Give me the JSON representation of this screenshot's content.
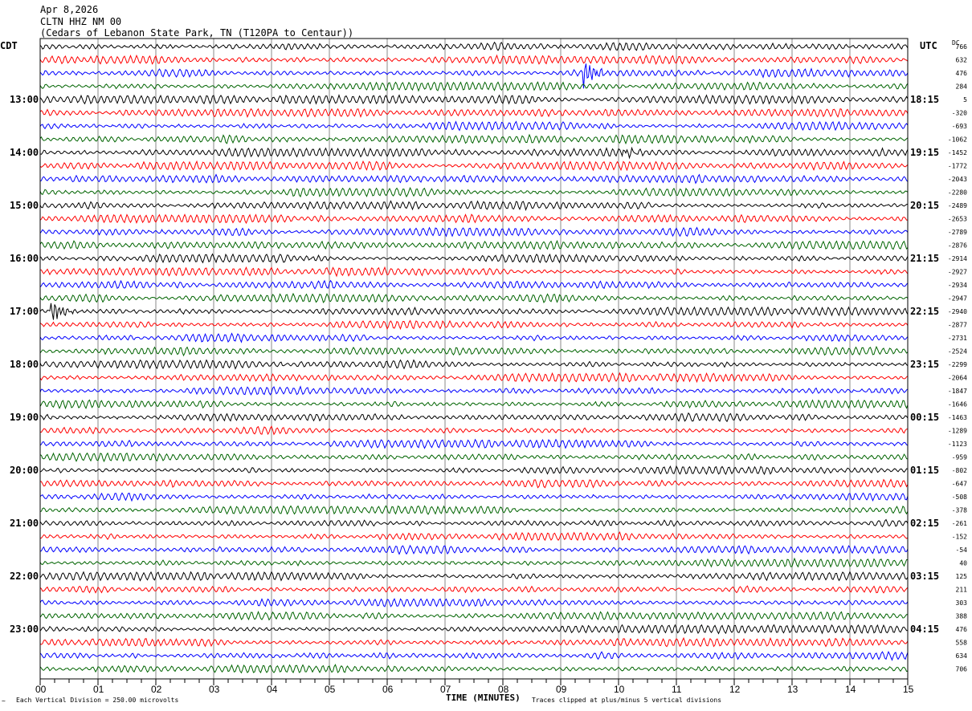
{
  "header": {
    "date": "Apr 8,2026",
    "station": "CLTN HHZ NM 00",
    "location": "(Cedars of Lebanon State Park, TN (T120PA to Centaur))"
  },
  "left_zone_label": "CDT",
  "right_zone_label": "UTC",
  "dc_label": "DC",
  "footer": {
    "scale_note": "Each Vertical Division =  250.00 microvolts",
    "xlabel": "TIME (MINUTES)",
    "clip_note": "Traces clipped at plus/minus 5 vertical divisions"
  },
  "chart_data": {
    "type": "line",
    "title": "CLTN HHZ NM 00 helicorder",
    "xlabel": "TIME (MINUTES)",
    "xlim": [
      0,
      15
    ],
    "x_ticks": [
      "00",
      "01",
      "02",
      "03",
      "04",
      "05",
      "06",
      "07",
      "08",
      "09",
      "10",
      "11",
      "12",
      "13",
      "14",
      "15"
    ],
    "grid": true,
    "trace_minutes": 15,
    "trace_colors": [
      "#000000",
      "#ff0000",
      "#0000ff",
      "#006400"
    ],
    "left_hour_labels": [
      "13:00",
      "14:00",
      "15:00",
      "16:00",
      "17:00",
      "18:00",
      "19:00",
      "20:00",
      "21:00",
      "22:00",
      "23:00"
    ],
    "right_hour_labels": [
      "18:15",
      "19:15",
      "20:15",
      "21:15",
      "22:15",
      "23:15",
      "00:15",
      "01:15",
      "02:15",
      "03:15",
      "04:15"
    ],
    "dc_offsets": [
      766,
      632,
      476,
      284,
      5,
      -320,
      -693,
      -1062,
      -1452,
      -1772,
      -2043,
      -2280,
      -2489,
      -2653,
      -2789,
      -2876,
      -2914,
      -2927,
      -2934,
      -2947,
      -2940,
      -2877,
      -2731,
      -2524,
      -2299,
      -2064,
      -1847,
      -1646,
      -1463,
      -1289,
      -1123,
      -959,
      -802,
      -647,
      -508,
      -378,
      -261,
      -152,
      -54,
      40,
      125,
      211,
      303,
      388,
      476,
      558,
      634,
      706
    ],
    "events": [
      {
        "trace": 2,
        "minute": 9.4,
        "amplitude_divisions": 3.5
      },
      {
        "trace": 8,
        "minute": 10.1,
        "amplitude_divisions": 1.2
      },
      {
        "trace": 20,
        "minute": 0.2,
        "amplitude_divisions": 3.0
      }
    ]
  }
}
